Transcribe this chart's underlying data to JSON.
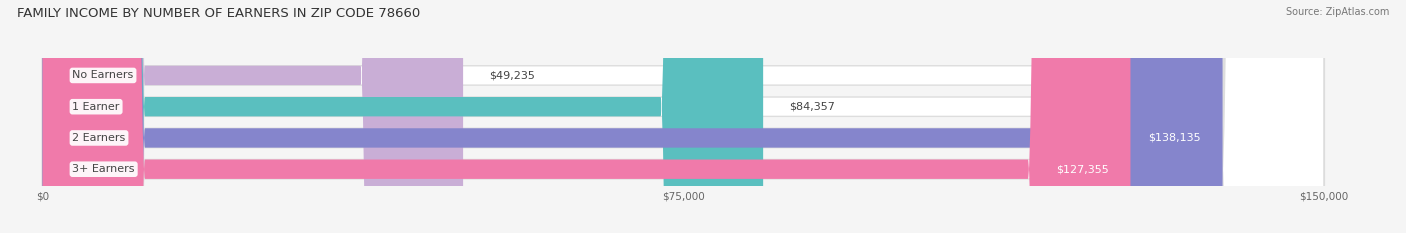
{
  "title": "FAMILY INCOME BY NUMBER OF EARNERS IN ZIP CODE 78660",
  "source": "Source: ZipAtlas.com",
  "categories": [
    "No Earners",
    "1 Earner",
    "2 Earners",
    "3+ Earners"
  ],
  "values": [
    49235,
    84357,
    138135,
    127355
  ],
  "max_value": 150000,
  "bar_colors": [
    "#c9aed6",
    "#5abfbf",
    "#8585cc",
    "#f07aaa"
  ],
  "background_color": "#f5f5f5",
  "track_color": "#e8e8e8",
  "value_labels": [
    "$49,235",
    "$84,357",
    "$138,135",
    "$127,355"
  ],
  "value_inside": [
    false,
    false,
    true,
    true
  ],
  "x_ticks": [
    0,
    75000,
    150000
  ],
  "x_tick_labels": [
    "$0",
    "$75,000",
    "$150,000"
  ],
  "title_fontsize": 9.5,
  "source_fontsize": 7,
  "label_fontsize": 8,
  "value_fontsize": 8
}
